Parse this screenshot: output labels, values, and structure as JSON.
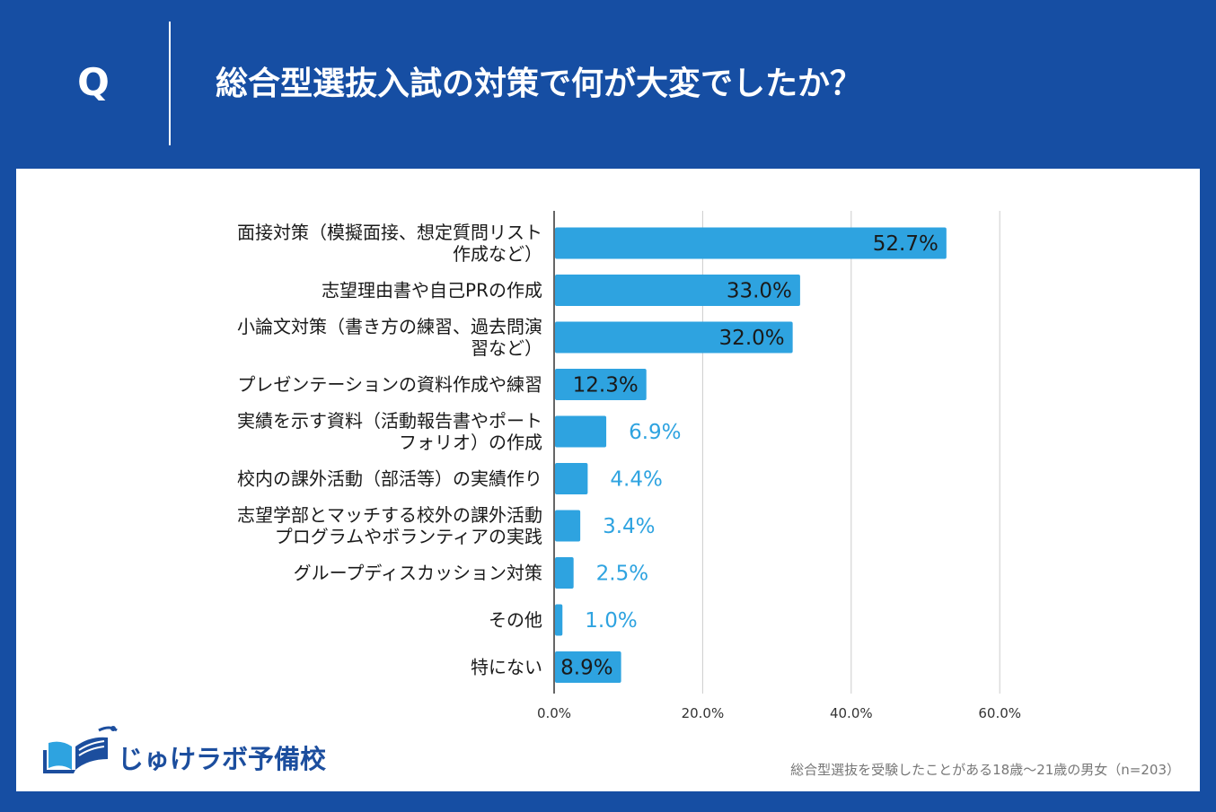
{
  "header": {
    "q_label": "Q",
    "question": "総合型選抜入試の対策で何が大変でしたか？"
  },
  "colors": {
    "background": "#164EA3",
    "bar": "#2EA3E0",
    "label_outside": "#2EA3E0",
    "label_inside": "#1a1a1a",
    "logo": "#1C4E9E"
  },
  "chart_data": {
    "type": "bar",
    "orientation": "horizontal",
    "categories": [
      [
        "面接対策（模擬面接、想定質問リスト",
        "作成など）"
      ],
      [
        "志望理由書や自己PRの作成"
      ],
      [
        "小論文対策（書き方の練習、過去問演",
        "習など）"
      ],
      [
        "プレゼンテーションの資料作成や練習"
      ],
      [
        "実績を示す資料（活動報告書やポート",
        "フォリオ）の作成"
      ],
      [
        "校内の課外活動（部活等）の実績作り"
      ],
      [
        "志望学部とマッチする校外の課外活動",
        "プログラムやボランティアの実践"
      ],
      [
        "グループディスカッション対策"
      ],
      [
        "その他"
      ],
      [
        "特にない"
      ]
    ],
    "values": [
      52.7,
      33.0,
      32.0,
      12.3,
      6.9,
      4.4,
      3.4,
      2.5,
      1.0,
      8.9
    ],
    "value_labels": [
      "52.7%",
      "33.0%",
      "32.0%",
      "12.3%",
      "6.9%",
      "4.4%",
      "3.4%",
      "2.5%",
      "1.0%",
      "8.9%"
    ],
    "label_inside": [
      true,
      true,
      true,
      true,
      false,
      false,
      false,
      false,
      false,
      true
    ],
    "xlim": [
      0,
      60
    ],
    "xticks": [
      0,
      20,
      40,
      60
    ],
    "xtick_labels": [
      "0.0%",
      "20.0%",
      "40.0%",
      "60.0%"
    ],
    "grid": true,
    "title": "",
    "xlabel": "",
    "ylabel": ""
  },
  "logo": {
    "icon": "open-book-icon",
    "text": "じゅけラボ予備校"
  },
  "footnote": "総合型選抜を受験したことがある18歳～21歳の男女（n=203）"
}
